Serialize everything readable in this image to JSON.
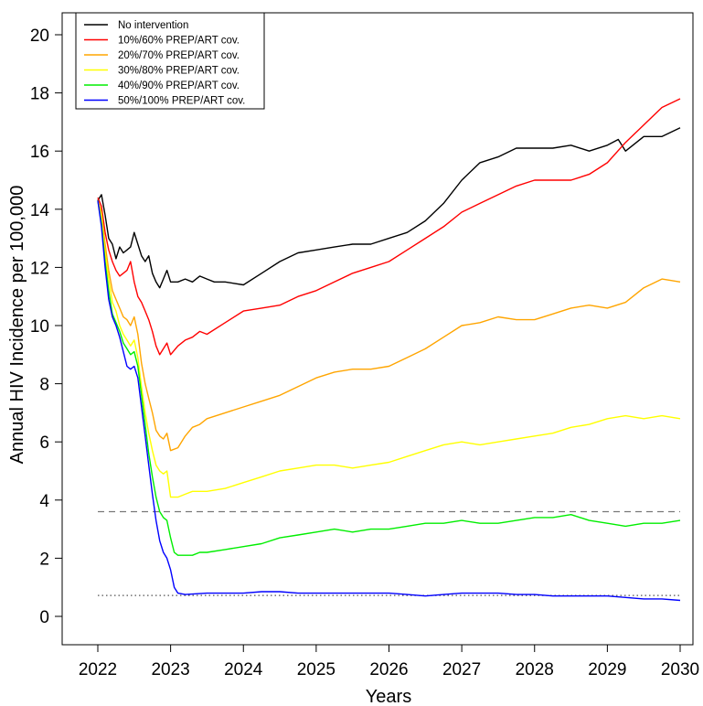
{
  "chart_data": {
    "type": "line",
    "xlabel": "Years",
    "ylabel": "Annual HIV Incidence per 100,000",
    "xlim": [
      2022,
      2030
    ],
    "ylim": [
      0,
      20
    ],
    "x_ticks": [
      "2022",
      "2023",
      "2024",
      "2025",
      "2026",
      "2027",
      "2028",
      "2029",
      "2030"
    ],
    "y_ticks": [
      "0",
      "2",
      "4",
      "6",
      "8",
      "10",
      "12",
      "14",
      "16",
      "18",
      "20"
    ],
    "legend_position": "top-left",
    "reference_lines": [
      {
        "style": "dashed",
        "y": 3.6,
        "color": "#777777"
      },
      {
        "style": "dotted",
        "y": 0.72,
        "color": "#555555"
      }
    ],
    "series": [
      {
        "name": "No intervention",
        "color": "#000000",
        "x": [
          2022.0,
          2022.05,
          2022.1,
          2022.15,
          2022.2,
          2022.25,
          2022.3,
          2022.35,
          2022.4,
          2022.45,
          2022.5,
          2022.55,
          2022.6,
          2022.65,
          2022.7,
          2022.75,
          2022.8,
          2022.85,
          2022.9,
          2022.95,
          2023.0,
          2023.1,
          2023.2,
          2023.3,
          2023.4,
          2023.5,
          2023.6,
          2023.75,
          2024.0,
          2024.25,
          2024.5,
          2024.75,
          2025.0,
          2025.25,
          2025.5,
          2025.75,
          2026.0,
          2026.25,
          2026.5,
          2026.75,
          2027.0,
          2027.25,
          2027.5,
          2027.75,
          2028.0,
          2028.25,
          2028.5,
          2028.75,
          2029.0,
          2029.15,
          2029.25,
          2029.5,
          2029.75,
          2030.0
        ],
        "values": [
          14.3,
          14.5,
          13.8,
          13.0,
          12.8,
          12.3,
          12.7,
          12.5,
          12.6,
          12.7,
          13.2,
          12.8,
          12.4,
          12.2,
          12.4,
          11.8,
          11.5,
          11.3,
          11.6,
          11.9,
          11.5,
          11.5,
          11.6,
          11.5,
          11.7,
          11.6,
          11.5,
          11.5,
          11.4,
          11.8,
          12.2,
          12.5,
          12.6,
          12.7,
          12.8,
          12.8,
          13.0,
          13.2,
          13.6,
          14.2,
          15.0,
          15.6,
          15.8,
          16.1,
          16.1,
          16.1,
          16.2,
          16.0,
          16.2,
          16.4,
          16.0,
          16.5,
          16.5,
          16.8
        ]
      },
      {
        "name": "10%/60% PREP/ART cov.",
        "color": "#ff0000",
        "x": [
          2022.0,
          2022.05,
          2022.1,
          2022.15,
          2022.2,
          2022.25,
          2022.3,
          2022.35,
          2022.4,
          2022.45,
          2022.5,
          2022.55,
          2022.6,
          2022.65,
          2022.7,
          2022.75,
          2022.8,
          2022.85,
          2022.9,
          2022.95,
          2023.0,
          2023.1,
          2023.2,
          2023.3,
          2023.4,
          2023.5,
          2023.75,
          2024.0,
          2024.25,
          2024.5,
          2024.75,
          2025.0,
          2025.25,
          2025.5,
          2025.75,
          2026.0,
          2026.25,
          2026.5,
          2026.75,
          2027.0,
          2027.25,
          2027.5,
          2027.75,
          2028.0,
          2028.25,
          2028.5,
          2028.75,
          2029.0,
          2029.25,
          2029.5,
          2029.75,
          2030.0
        ],
        "values": [
          14.4,
          14.1,
          13.2,
          12.6,
          12.2,
          11.9,
          11.7,
          11.8,
          11.9,
          12.2,
          11.5,
          11.0,
          10.8,
          10.5,
          10.2,
          9.8,
          9.3,
          9.0,
          9.2,
          9.4,
          9.0,
          9.3,
          9.5,
          9.6,
          9.8,
          9.7,
          10.1,
          10.5,
          10.6,
          10.7,
          11.0,
          11.2,
          11.5,
          11.8,
          12.0,
          12.2,
          12.6,
          13.0,
          13.4,
          13.9,
          14.2,
          14.5,
          14.8,
          15.0,
          15.0,
          15.0,
          15.2,
          15.6,
          16.3,
          16.9,
          17.5,
          17.8
        ]
      },
      {
        "name": "20%/70% PREP/ART cov.",
        "color": "#ffa500",
        "x": [
          2022.0,
          2022.05,
          2022.1,
          2022.15,
          2022.2,
          2022.25,
          2022.3,
          2022.35,
          2022.4,
          2022.45,
          2022.5,
          2022.55,
          2022.6,
          2022.65,
          2022.7,
          2022.75,
          2022.8,
          2022.85,
          2022.9,
          2022.95,
          2023.0,
          2023.1,
          2023.2,
          2023.3,
          2023.4,
          2023.5,
          2023.75,
          2024.0,
          2024.25,
          2024.5,
          2024.75,
          2025.0,
          2025.25,
          2025.5,
          2025.75,
          2026.0,
          2026.25,
          2026.5,
          2026.75,
          2027.0,
          2027.25,
          2027.5,
          2027.75,
          2028.0,
          2028.25,
          2028.5,
          2028.75,
          2029.0,
          2029.25,
          2029.5,
          2029.75,
          2030.0
        ],
        "values": [
          14.3,
          13.9,
          12.8,
          11.9,
          11.2,
          10.9,
          10.6,
          10.3,
          10.2,
          10.0,
          10.3,
          9.7,
          8.7,
          8.0,
          7.5,
          7.0,
          6.4,
          6.2,
          6.1,
          6.3,
          5.7,
          5.8,
          6.2,
          6.5,
          6.6,
          6.8,
          7.0,
          7.2,
          7.4,
          7.6,
          7.9,
          8.2,
          8.4,
          8.5,
          8.5,
          8.6,
          8.9,
          9.2,
          9.6,
          10.0,
          10.1,
          10.3,
          10.2,
          10.2,
          10.4,
          10.6,
          10.7,
          10.6,
          10.8,
          11.3,
          11.6,
          11.5
        ]
      },
      {
        "name": "30%/80% PREP/ART cov.",
        "color": "#ffff00",
        "x": [
          2022.0,
          2022.05,
          2022.1,
          2022.15,
          2022.2,
          2022.25,
          2022.3,
          2022.35,
          2022.4,
          2022.45,
          2022.5,
          2022.55,
          2022.6,
          2022.65,
          2022.7,
          2022.75,
          2022.8,
          2022.85,
          2022.9,
          2022.95,
          2023.0,
          2023.1,
          2023.2,
          2023.3,
          2023.4,
          2023.5,
          2023.75,
          2024.0,
          2024.25,
          2024.5,
          2024.75,
          2025.0,
          2025.25,
          2025.5,
          2025.75,
          2026.0,
          2026.25,
          2026.5,
          2026.75,
          2027.0,
          2027.25,
          2027.5,
          2027.75,
          2028.0,
          2028.25,
          2028.5,
          2028.75,
          2029.0,
          2029.25,
          2029.5,
          2029.75,
          2030.0
        ],
        "values": [
          14.3,
          13.7,
          12.5,
          11.6,
          10.8,
          10.5,
          10.0,
          9.7,
          9.5,
          9.3,
          9.5,
          8.9,
          7.9,
          7.0,
          6.3,
          5.7,
          5.2,
          5.0,
          4.9,
          5.0,
          4.1,
          4.1,
          4.2,
          4.3,
          4.3,
          4.3,
          4.4,
          4.6,
          4.8,
          5.0,
          5.1,
          5.2,
          5.2,
          5.1,
          5.2,
          5.3,
          5.5,
          5.7,
          5.9,
          6.0,
          5.9,
          6.0,
          6.1,
          6.2,
          6.3,
          6.5,
          6.6,
          6.8,
          6.9,
          6.8,
          6.9,
          6.8
        ]
      },
      {
        "name": "40%/90% PREP/ART cov.",
        "color": "#00ee00",
        "x": [
          2022.0,
          2022.05,
          2022.1,
          2022.15,
          2022.2,
          2022.25,
          2022.3,
          2022.35,
          2022.4,
          2022.45,
          2022.5,
          2022.55,
          2022.6,
          2022.65,
          2022.7,
          2022.75,
          2022.8,
          2022.85,
          2022.9,
          2022.95,
          2023.0,
          2023.05,
          2023.1,
          2023.2,
          2023.3,
          2023.4,
          2023.5,
          2023.75,
          2024.0,
          2024.25,
          2024.5,
          2024.75,
          2025.0,
          2025.25,
          2025.5,
          2025.75,
          2026.0,
          2026.25,
          2026.5,
          2026.75,
          2027.0,
          2027.25,
          2027.5,
          2027.75,
          2028.0,
          2028.25,
          2028.5,
          2028.75,
          2029.0,
          2029.25,
          2029.5,
          2029.75,
          2030.0
        ],
        "values": [
          14.3,
          13.5,
          12.2,
          11.2,
          10.4,
          10.1,
          9.8,
          9.4,
          9.2,
          9.0,
          9.1,
          8.6,
          7.6,
          6.6,
          5.6,
          4.8,
          4.1,
          3.6,
          3.4,
          3.3,
          2.7,
          2.2,
          2.1,
          2.1,
          2.1,
          2.2,
          2.2,
          2.3,
          2.4,
          2.5,
          2.7,
          2.8,
          2.9,
          3.0,
          2.9,
          3.0,
          3.0,
          3.1,
          3.2,
          3.2,
          3.3,
          3.2,
          3.2,
          3.3,
          3.4,
          3.4,
          3.5,
          3.3,
          3.2,
          3.1,
          3.2,
          3.2,
          3.3
        ]
      },
      {
        "name": "50%/100% PREP/ART cov.",
        "color": "#0000ff",
        "x": [
          2022.0,
          2022.05,
          2022.1,
          2022.15,
          2022.2,
          2022.25,
          2022.3,
          2022.35,
          2022.4,
          2022.45,
          2022.5,
          2022.55,
          2022.6,
          2022.65,
          2022.7,
          2022.75,
          2022.8,
          2022.85,
          2022.9,
          2022.95,
          2023.0,
          2023.05,
          2023.1,
          2023.2,
          2023.5,
          2023.75,
          2024.0,
          2024.25,
          2024.5,
          2024.75,
          2025.0,
          2025.25,
          2025.5,
          2025.75,
          2026.0,
          2026.25,
          2026.5,
          2026.75,
          2027.0,
          2027.25,
          2027.5,
          2027.75,
          2028.0,
          2028.25,
          2028.5,
          2028.75,
          2029.0,
          2029.25,
          2029.5,
          2029.75,
          2030.0
        ],
        "values": [
          14.3,
          13.4,
          12.0,
          10.9,
          10.3,
          10.0,
          9.6,
          9.1,
          8.6,
          8.5,
          8.6,
          8.2,
          7.2,
          6.2,
          5.2,
          4.2,
          3.3,
          2.6,
          2.2,
          2.0,
          1.6,
          1.0,
          0.8,
          0.75,
          0.8,
          0.8,
          0.8,
          0.85,
          0.85,
          0.8,
          0.8,
          0.8,
          0.8,
          0.8,
          0.8,
          0.75,
          0.7,
          0.75,
          0.8,
          0.8,
          0.8,
          0.75,
          0.75,
          0.7,
          0.7,
          0.7,
          0.7,
          0.65,
          0.6,
          0.6,
          0.55
        ]
      }
    ]
  }
}
